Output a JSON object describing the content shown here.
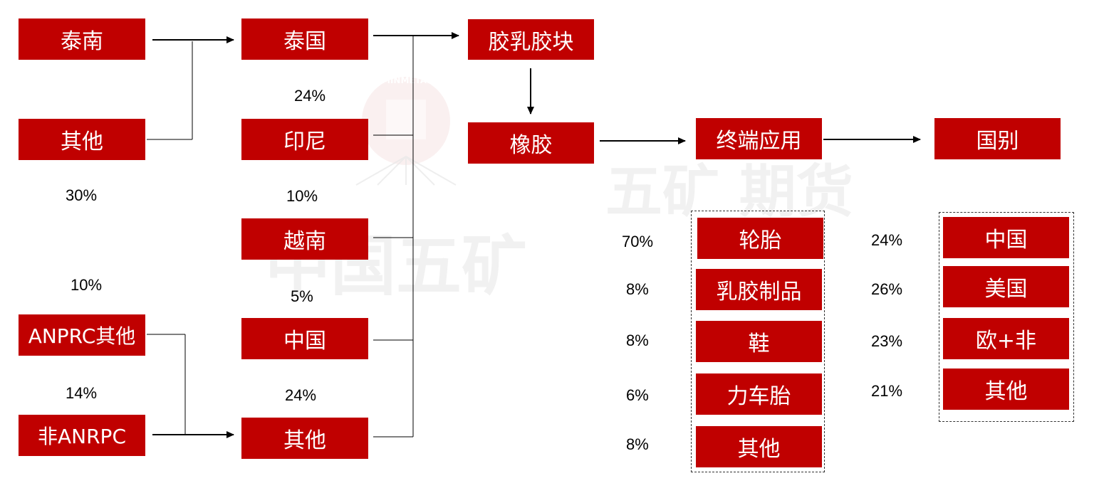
{
  "sources": {
    "thai_south": "泰南",
    "other": "其他",
    "anrpc_other": "ANPRC其他",
    "non_anrpc": "非ANRPC"
  },
  "producers": {
    "thailand": "泰国",
    "indonesia": "印尼",
    "vietnam": "越南",
    "china": "中国",
    "other": "其他"
  },
  "products": {
    "latex_block": "胶乳胶块",
    "rubber": "橡胶",
    "end_use": "终端应用",
    "country": "国别"
  },
  "applications": [
    {
      "label": "轮胎",
      "pct": "70%"
    },
    {
      "label": "乳胶制品",
      "pct": "8%"
    },
    {
      "label": "鞋",
      "pct": "8%"
    },
    {
      "label": "力车胎",
      "pct": "6%"
    },
    {
      "label": "其他",
      "pct": "8%"
    }
  ],
  "countries": [
    {
      "label": "中国",
      "pct": "24%"
    },
    {
      "label": "美国",
      "pct": "26%"
    },
    {
      "label": "欧+非",
      "pct": "23%"
    },
    {
      "label": "其他",
      "pct": "21%"
    }
  ],
  "source_pcts": {
    "other": "30%",
    "anrpc_other": "10%",
    "non_anrpc": "14%"
  },
  "producer_pcts": {
    "thailand": "24%",
    "indonesia": "10%",
    "vietnam": "5%",
    "other": "24%"
  },
  "watermark": {
    "top": "五矿 期货",
    "bottom": "中国五矿",
    "logo": "MINMETALS"
  },
  "colors": {
    "box": "#c00000",
    "text": "#ffffff"
  }
}
